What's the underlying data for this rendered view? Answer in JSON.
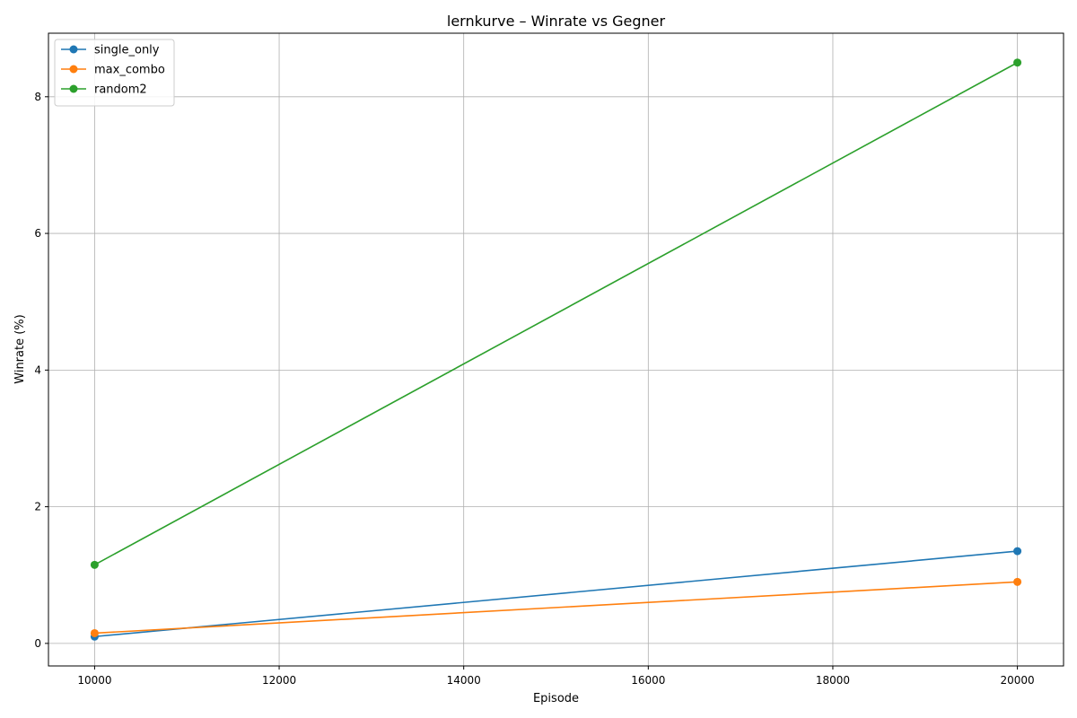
{
  "chart_data": {
    "type": "line",
    "title": "lernkurve – Winrate vs Gegner",
    "xlabel": "Episode",
    "ylabel": "Winrate (%)",
    "x": [
      10000,
      20000
    ],
    "xlim": [
      9500,
      20500
    ],
    "ylim": [
      -0.33,
      8.93
    ],
    "xticks": [
      10000,
      12000,
      14000,
      16000,
      18000,
      20000
    ],
    "yticks": [
      0,
      2,
      4,
      6,
      8
    ],
    "xtick_labels": [
      "10000",
      "12000",
      "14000",
      "16000",
      "18000",
      "20000"
    ],
    "ytick_labels": [
      "0",
      "2",
      "4",
      "6",
      "8"
    ],
    "grid": true,
    "legend_position": "top-left",
    "series": [
      {
        "name": "single_only",
        "values": [
          0.1,
          1.35
        ],
        "color": "#1f77b4"
      },
      {
        "name": "max_combo",
        "values": [
          0.15,
          0.9
        ],
        "color": "#ff7f0e"
      },
      {
        "name": "random2",
        "values": [
          1.15,
          8.5
        ],
        "color": "#2ca02c"
      }
    ]
  }
}
